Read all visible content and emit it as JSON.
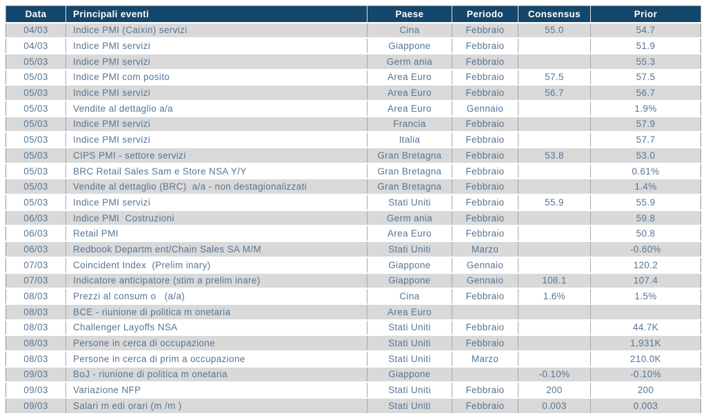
{
  "colors": {
    "header_bg": "#15466b",
    "header_text": "#ffffff",
    "row_alt_bg": "#d9d9d9",
    "row_bg": "#ffffff",
    "text": "#567594",
    "grid_v": "#a6a6a6",
    "grid_h": "#ffffff",
    "outer_border": "#8f9499"
  },
  "table": {
    "columns": [
      "Data",
      "Principali eventi",
      "Paese",
      "Periodo",
      "Consensus",
      "Prior"
    ],
    "rows": [
      [
        "04/03",
        "Indice PMI (Caixin) servizi",
        "Cina",
        "Febbraio",
        "55.0",
        "54.7"
      ],
      [
        "04/03",
        "Indice PMI servizi",
        "Giappone",
        "Febbraio",
        "",
        "51.9"
      ],
      [
        "05/03",
        "Indice PMI servizi",
        "Germ ania",
        "Febbraio",
        "",
        "55.3"
      ],
      [
        "05/03",
        "Indice PMI com posito",
        "Area Euro",
        "Febbraio",
        "57.5",
        "57.5"
      ],
      [
        "05/03",
        "Indice PMI servizi",
        "Area Euro",
        "Febbraio",
        "56.7",
        "56.7"
      ],
      [
        "05/03",
        "Vendite al dettaglio a/a",
        "Area Euro",
        "Gennaio",
        "",
        "1.9%"
      ],
      [
        "05/03",
        "Indice PMI servizi",
        "Francia",
        "Febbraio",
        "",
        "57.9"
      ],
      [
        "05/03",
        "Indice PMI servizi",
        "Italia",
        "Febbraio",
        "",
        "57.7"
      ],
      [
        "05/03",
        "CIPS PMI - settore servizi",
        "Gran Bretagna",
        "Febbraio",
        "53.8",
        "53.0"
      ],
      [
        "05/03",
        "BRC Retail Sales Sam e Store NSA Y/Y",
        "Gran Bretagna",
        "Febbraio",
        "",
        "0.61%"
      ],
      [
        "05/03",
        "Vendite al dettaglio (BRC)  a/a - non destagionalizzati",
        "Gran Bretagna",
        "Febbraio",
        "",
        "1.4%"
      ],
      [
        "05/03",
        "Indice PMI servizi",
        "Stati Uniti",
        "Febbraio",
        "55.9",
        "55.9"
      ],
      [
        "06/03",
        "Indice PMI  Costruzioni",
        "Germ ania",
        "Febbraio",
        "",
        "59.8"
      ],
      [
        "06/03",
        "Retail PMI",
        "Area Euro",
        "Febbraio",
        "",
        "50.8"
      ],
      [
        "06/03",
        "Redbook Departm ent/Chain Sales SA M/M",
        "Stati Uniti",
        "Marzo",
        "",
        "-0.60%"
      ],
      [
        "07/03",
        "Coincident Index  (Prelim inary)",
        "Giappone",
        "Gennaio",
        "",
        "120.2"
      ],
      [
        "07/03",
        "Indicatore anticipatore (stim a prelim inare)",
        "Giappone",
        "Gennaio",
        "108.1",
        "107.4"
      ],
      [
        "08/03",
        "Prezzi al consum o   (a/a)",
        "Cina",
        "Febbraio",
        "1.6%",
        "1.5%"
      ],
      [
        "08/03",
        "BCE - riunione di politica m onetaria",
        "Area Euro",
        "",
        "",
        ""
      ],
      [
        "08/03",
        "Challenger Layoffs NSA",
        "Stati Uniti",
        "Febbraio",
        "",
        "44.7K"
      ],
      [
        "08/03",
        "Persone in cerca di occupazione",
        "Stati Uniti",
        "Febbraio",
        "",
        "1,931K"
      ],
      [
        "08/03",
        "Persone in cerca di prim a occupazione",
        "Stati Uniti",
        "Marzo",
        "",
        "210.0K"
      ],
      [
        "09/03",
        "BoJ - riunione di politica m onetaria",
        "Giappone",
        "",
        "-0.10%",
        "-0.10%"
      ],
      [
        "09/03",
        "Variazione NFP",
        "Stati Uniti",
        "Febbraio",
        "200",
        "200"
      ],
      [
        "09/03",
        "Salari m edi orari (m /m )",
        "Stati Uniti",
        "Febbraio",
        "0.003",
        "0.003"
      ]
    ]
  }
}
